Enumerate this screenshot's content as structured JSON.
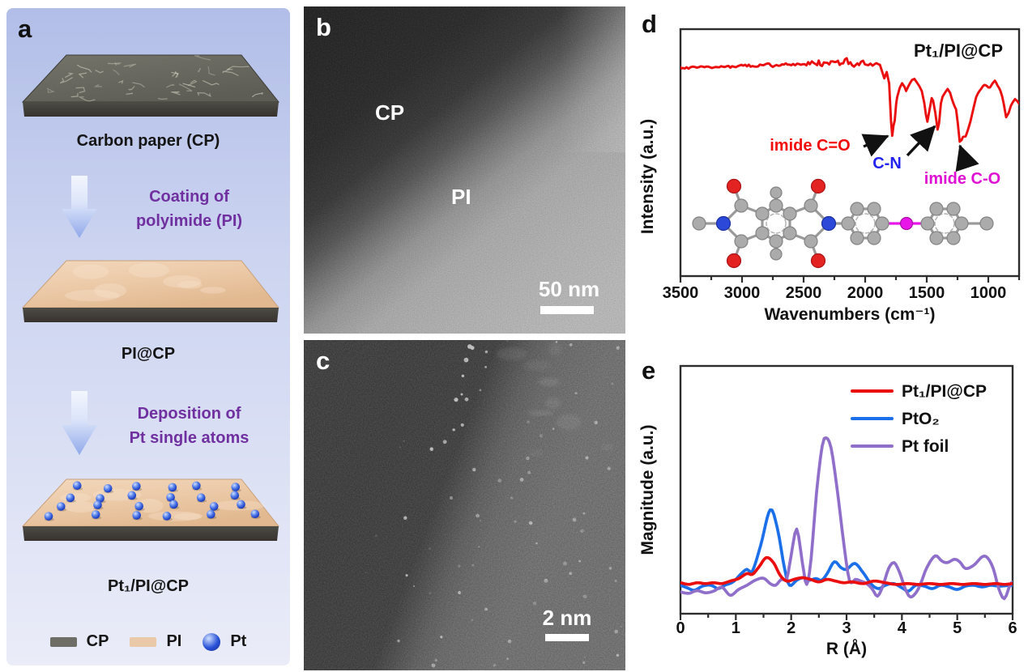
{
  "panel_a": {
    "label": "a",
    "accent_color": "#7030a0",
    "background_top": "#b2bee8",
    "background_bottom": "#eaecf8",
    "steps": [
      {
        "caption": "Carbon paper (CP)"
      },
      {
        "caption": "PI@CP"
      },
      {
        "caption": "Pt₁/PI@CP"
      }
    ],
    "arrows": [
      {
        "line1": "Coating of",
        "line2": "polyimide (PI)"
      },
      {
        "line1": "Deposition of",
        "line2": "Pt single atoms"
      }
    ],
    "legend": [
      {
        "label": "CP",
        "color": "#6e6e66"
      },
      {
        "label": "PI",
        "color": "#eac9a8"
      },
      {
        "label": "Pt",
        "color": "#2a52d8"
      }
    ]
  },
  "panel_b": {
    "label": "b",
    "region_labels": [
      "CP",
      "PI"
    ],
    "scale_bar_text": "50 nm"
  },
  "panel_c": {
    "label": "c",
    "scale_bar_text": "2 nm"
  },
  "chart_data": [
    {
      "panel": "d",
      "type": "line",
      "title": "Pt₁/PI@CP",
      "xlabel": "Wavenumbers (cm⁻¹)",
      "ylabel": "Intensity (a.u.)",
      "x_ticks": [
        3500,
        3000,
        2500,
        2000,
        1500,
        1000
      ],
      "x_minor_step": 250,
      "x_range": [
        3500,
        750
      ],
      "x_axis_reversed": true,
      "grid": false,
      "line_color": "#ea0e0e",
      "annotations": [
        {
          "text": "imide C=O",
          "color": "#f20d0d"
        },
        {
          "text": "C-N",
          "color": "#2323f0"
        },
        {
          "text": "imide C-O",
          "color": "#df10d4"
        }
      ],
      "curve_anchors": [
        [
          3500,
          0.843
        ],
        [
          3350,
          0.845
        ],
        [
          3200,
          0.847
        ],
        [
          3050,
          0.85
        ],
        [
          2900,
          0.853
        ],
        [
          2750,
          0.855
        ],
        [
          2600,
          0.857
        ],
        [
          2450,
          0.86
        ],
        [
          2350,
          0.862
        ],
        [
          2250,
          0.866
        ],
        [
          2150,
          0.864
        ],
        [
          2050,
          0.862
        ],
        [
          1975,
          0.859
        ],
        [
          1925,
          0.858
        ],
        [
          1880,
          0.856
        ],
        [
          1845,
          0.8
        ],
        [
          1825,
          0.825
        ],
        [
          1805,
          0.78
        ],
        [
          1790,
          0.63
        ],
        [
          1780,
          0.567
        ],
        [
          1770,
          0.61
        ],
        [
          1760,
          0.63
        ],
        [
          1748,
          0.7
        ],
        [
          1740,
          0.725
        ],
        [
          1720,
          0.762
        ],
        [
          1700,
          0.78
        ],
        [
          1680,
          0.765
        ],
        [
          1668,
          0.751
        ],
        [
          1650,
          0.768
        ],
        [
          1620,
          0.795
        ],
        [
          1600,
          0.8
        ],
        [
          1580,
          0.785
        ],
        [
          1560,
          0.768
        ],
        [
          1540,
          0.75
        ],
        [
          1520,
          0.7
        ],
        [
          1495,
          0.626
        ],
        [
          1478,
          0.672
        ],
        [
          1460,
          0.722
        ],
        [
          1448,
          0.71
        ],
        [
          1430,
          0.66
        ],
        [
          1412,
          0.593
        ],
        [
          1400,
          0.62
        ],
        [
          1385,
          0.7
        ],
        [
          1372,
          0.725
        ],
        [
          1355,
          0.74
        ],
        [
          1330,
          0.757
        ],
        [
          1310,
          0.74
        ],
        [
          1285,
          0.7
        ],
        [
          1262,
          0.675
        ],
        [
          1248,
          0.62
        ],
        [
          1232,
          0.545
        ],
        [
          1218,
          0.552
        ],
        [
          1205,
          0.565
        ],
        [
          1184,
          0.567
        ],
        [
          1160,
          0.6
        ],
        [
          1145,
          0.626
        ],
        [
          1120,
          0.68
        ],
        [
          1099,
          0.725
        ],
        [
          1070,
          0.75
        ],
        [
          1033,
          0.774
        ],
        [
          1010,
          0.768
        ],
        [
          987,
          0.764
        ],
        [
          965,
          0.78
        ],
        [
          947,
          0.79
        ],
        [
          925,
          0.77
        ],
        [
          901,
          0.751
        ],
        [
          875,
          0.7
        ],
        [
          855,
          0.643
        ],
        [
          835,
          0.66
        ],
        [
          816,
          0.692
        ],
        [
          800,
          0.705
        ],
        [
          783,
          0.718
        ],
        [
          765,
          0.708
        ],
        [
          750,
          0.698
        ]
      ]
    },
    {
      "panel": "e",
      "type": "line",
      "title": "",
      "xlabel": "R (Å)",
      "ylabel": "Magnitude (a.u.)",
      "x_ticks": [
        0,
        1,
        2,
        3,
        4,
        5,
        6
      ],
      "x_minor_step": 0.5,
      "x_range": [
        0,
        6
      ],
      "grid": false,
      "legend_position": "top-right",
      "series": [
        {
          "name": "Pt₁/PI@CP",
          "color": "#ea0e0e",
          "points": [
            [
              0,
              0.035
            ],
            [
              0.15,
              0.025
            ],
            [
              0.3,
              0.035
            ],
            [
              0.45,
              0.03
            ],
            [
              0.6,
              0.035
            ],
            [
              0.75,
              0.03
            ],
            [
              0.9,
              0.045
            ],
            [
              1.05,
              0.06
            ],
            [
              1.2,
              0.09
            ],
            [
              1.3,
              0.085
            ],
            [
              1.42,
              0.13
            ],
            [
              1.55,
              0.185
            ],
            [
              1.68,
              0.155
            ],
            [
              1.8,
              0.08
            ],
            [
              1.92,
              0.045
            ],
            [
              2.05,
              0.055
            ],
            [
              2.2,
              0.065
            ],
            [
              2.35,
              0.055
            ],
            [
              2.5,
              0.04
            ],
            [
              2.65,
              0.055
            ],
            [
              2.8,
              0.045
            ],
            [
              2.95,
              0.035
            ],
            [
              3.1,
              0.04
            ],
            [
              3.3,
              0.03
            ],
            [
              3.5,
              0.045
            ],
            [
              3.7,
              0.035
            ],
            [
              3.9,
              0.025
            ],
            [
              4.1,
              0.03
            ],
            [
              4.3,
              0.025
            ],
            [
              4.5,
              0.03
            ],
            [
              4.7,
              0.025
            ],
            [
              4.9,
              0.03
            ],
            [
              5.1,
              0.025
            ],
            [
              5.3,
              0.03
            ],
            [
              5.5,
              0.025
            ],
            [
              5.7,
              0.03
            ],
            [
              5.85,
              0.025
            ],
            [
              6,
              0.03
            ]
          ]
        },
        {
          "name": "PtO₂",
          "color": "#1b6fe8",
          "points": [
            [
              0,
              0.02
            ],
            [
              0.12,
              0.005
            ],
            [
              0.25,
              -0.01
            ],
            [
              0.4,
              0.015
            ],
            [
              0.55,
              0.02
            ],
            [
              0.68,
              0
            ],
            [
              0.8,
              0.02
            ],
            [
              0.95,
              0.04
            ],
            [
              1.1,
              0.09
            ],
            [
              1.2,
              0.115
            ],
            [
              1.3,
              0.105
            ],
            [
              1.45,
              0.26
            ],
            [
              1.62,
              0.47
            ],
            [
              1.75,
              0.36
            ],
            [
              1.88,
              0.12
            ],
            [
              1.97,
              0.02
            ],
            [
              2.1,
              0.05
            ],
            [
              2.22,
              0.065
            ],
            [
              2.32,
              0.05
            ],
            [
              2.45,
              0.06
            ],
            [
              2.55,
              0.05
            ],
            [
              2.65,
              0.09
            ],
            [
              2.78,
              0.16
            ],
            [
              2.9,
              0.125
            ],
            [
              3.0,
              0.115
            ],
            [
              3.15,
              0.15
            ],
            [
              3.3,
              0.095
            ],
            [
              3.45,
              0.025
            ],
            [
              3.58,
              0
            ],
            [
              3.7,
              0.02
            ],
            [
              3.85,
              0.03
            ],
            [
              4.0,
              0.005
            ],
            [
              4.12,
              -0.015
            ],
            [
              4.25,
              0.02
            ],
            [
              4.4,
              0.015
            ],
            [
              4.55,
              0
            ],
            [
              4.7,
              0.02
            ],
            [
              4.85,
              0.01
            ],
            [
              5.0,
              -0.005
            ],
            [
              5.15,
              0.015
            ],
            [
              5.3,
              0.02
            ],
            [
              5.45,
              0.01
            ],
            [
              5.6,
              0.02
            ],
            [
              5.75,
              0.015
            ],
            [
              5.9,
              0.018
            ],
            [
              6,
              0.02
            ]
          ]
        },
        {
          "name": "Pt foil",
          "color": "#8f6fc9",
          "points": [
            [
              0,
              -0.02
            ],
            [
              0.15,
              -0.028
            ],
            [
              0.3,
              -0.012
            ],
            [
              0.45,
              -0.025
            ],
            [
              0.6,
              -0.015
            ],
            [
              0.75,
              0.008
            ],
            [
              0.9,
              -0.04
            ],
            [
              1.05,
              -0.005
            ],
            [
              1.2,
              0.02
            ],
            [
              1.35,
              0.05
            ],
            [
              1.5,
              0.062
            ],
            [
              1.62,
              0.03
            ],
            [
              1.72,
              0.02
            ],
            [
              1.82,
              0.055
            ],
            [
              1.92,
              0.06
            ],
            [
              2.0,
              0.2
            ],
            [
              2.1,
              0.355
            ],
            [
              2.2,
              0.16
            ],
            [
              2.28,
              0.025
            ],
            [
              2.36,
              0.18
            ],
            [
              2.46,
              0.58
            ],
            [
              2.56,
              0.85
            ],
            [
              2.63,
              0.9
            ],
            [
              2.72,
              0.84
            ],
            [
              2.82,
              0.62
            ],
            [
              2.92,
              0.35
            ],
            [
              3.02,
              0.1
            ],
            [
              3.08,
              0.035
            ],
            [
              3.16,
              0.055
            ],
            [
              3.26,
              0.045
            ],
            [
              3.36,
              0.03
            ],
            [
              3.46,
              0
            ],
            [
              3.56,
              -0.045
            ],
            [
              3.66,
              0.02
            ],
            [
              3.76,
              0.12
            ],
            [
              3.86,
              0.155
            ],
            [
              3.96,
              0.095
            ],
            [
              4.06,
              0
            ],
            [
              4.16,
              -0.05
            ],
            [
              4.3,
              0
            ],
            [
              4.45,
              0.125
            ],
            [
              4.6,
              0.195
            ],
            [
              4.72,
              0.165
            ],
            [
              4.82,
              0.155
            ],
            [
              4.95,
              0.175
            ],
            [
              5.05,
              0.158
            ],
            [
              5.15,
              0.12
            ],
            [
              5.3,
              0.14
            ],
            [
              5.45,
              0.19
            ],
            [
              5.55,
              0.183
            ],
            [
              5.65,
              0.12
            ],
            [
              5.75,
              0
            ],
            [
              5.85,
              -0.06
            ],
            [
              5.95,
              0.02
            ],
            [
              6,
              0.04
            ]
          ]
        }
      ]
    }
  ]
}
